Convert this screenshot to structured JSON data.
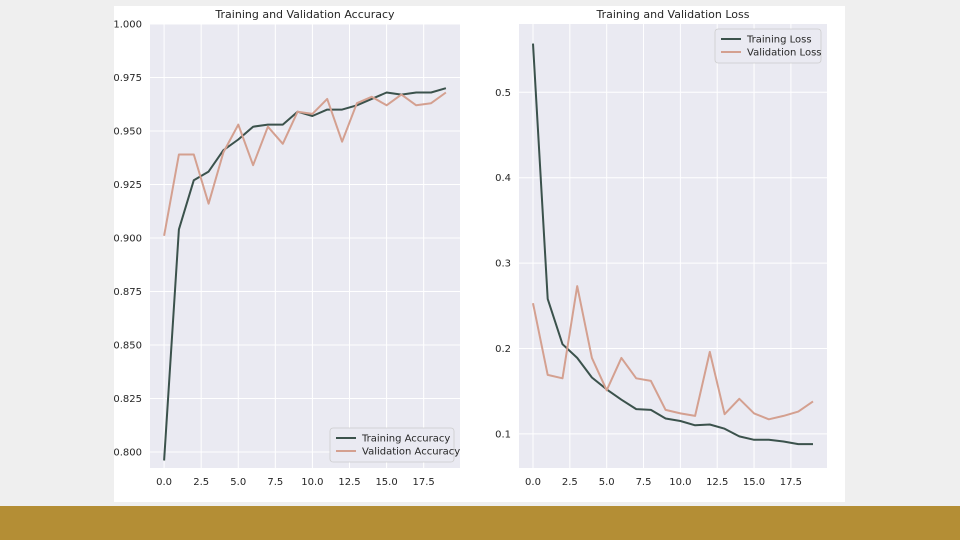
{
  "slide": {
    "background": "#efefef",
    "footer_color": "#b48e35"
  },
  "chart_data": [
    {
      "type": "line",
      "title": "Training and Validation Accuracy",
      "xlabel": "",
      "ylabel": "",
      "xlim": [
        -0.95,
        19.95
      ],
      "ylim": [
        0.7925,
        1.0
      ],
      "xticks": [
        "0.0",
        "2.5",
        "5.0",
        "7.5",
        "10.0",
        "12.5",
        "15.0",
        "17.5"
      ],
      "xtick_values": [
        0,
        2.5,
        5,
        7.5,
        10,
        12.5,
        15,
        17.5
      ],
      "yticks": [
        "0.800",
        "0.825",
        "0.850",
        "0.875",
        "0.900",
        "0.925",
        "0.950",
        "0.975",
        "1.000"
      ],
      "ytick_values": [
        0.8,
        0.825,
        0.85,
        0.875,
        0.9,
        0.925,
        0.95,
        0.975,
        1.0
      ],
      "grid": true,
      "legend_position": "lower-right",
      "x": [
        0,
        1,
        2,
        3,
        4,
        5,
        6,
        7,
        8,
        9,
        10,
        11,
        12,
        13,
        14,
        15,
        16,
        17,
        18,
        19
      ],
      "series": [
        {
          "name": "Training Accuracy",
          "color": "#3b524c",
          "values": [
            0.796,
            0.904,
            0.927,
            0.931,
            0.941,
            0.946,
            0.952,
            0.953,
            0.953,
            0.959,
            0.957,
            0.96,
            0.96,
            0.962,
            0.965,
            0.968,
            0.967,
            0.968,
            0.968,
            0.97
          ]
        },
        {
          "name": "Validation Accuracy",
          "color": "#d4a090",
          "values": [
            0.901,
            0.939,
            0.939,
            0.916,
            0.94,
            0.953,
            0.934,
            0.952,
            0.944,
            0.959,
            0.958,
            0.965,
            0.945,
            0.963,
            0.966,
            0.962,
            0.967,
            0.962,
            0.963,
            0.968
          ]
        }
      ]
    },
    {
      "type": "line",
      "title": "Training and Validation Loss",
      "xlabel": "",
      "ylabel": "",
      "xlim": [
        -0.95,
        19.95
      ],
      "ylim": [
        0.06,
        0.58
      ],
      "xticks": [
        "0.0",
        "2.5",
        "5.0",
        "7.5",
        "10.0",
        "12.5",
        "15.0",
        "17.5"
      ],
      "xtick_values": [
        0,
        2.5,
        5,
        7.5,
        10,
        12.5,
        15,
        17.5
      ],
      "yticks": [
        "0.1",
        "0.2",
        "0.3",
        "0.4",
        "0.5"
      ],
      "ytick_values": [
        0.1,
        0.2,
        0.3,
        0.4,
        0.5
      ],
      "grid": true,
      "legend_position": "upper-right",
      "x": [
        0,
        1,
        2,
        3,
        4,
        5,
        6,
        7,
        8,
        9,
        10,
        11,
        12,
        13,
        14,
        15,
        16,
        17,
        18,
        19
      ],
      "series": [
        {
          "name": "Training Loss",
          "color": "#3b524c",
          "values": [
            0.557,
            0.258,
            0.205,
            0.189,
            0.166,
            0.152,
            0.14,
            0.129,
            0.128,
            0.118,
            0.115,
            0.11,
            0.111,
            0.106,
            0.097,
            0.093,
            0.093,
            0.091,
            0.088,
            0.088
          ]
        },
        {
          "name": "Validation Loss",
          "color": "#d4a090",
          "values": [
            0.253,
            0.169,
            0.165,
            0.273,
            0.189,
            0.151,
            0.189,
            0.165,
            0.162,
            0.128,
            0.124,
            0.121,
            0.196,
            0.123,
            0.141,
            0.124,
            0.117,
            0.121,
            0.126,
            0.138
          ]
        }
      ]
    }
  ]
}
